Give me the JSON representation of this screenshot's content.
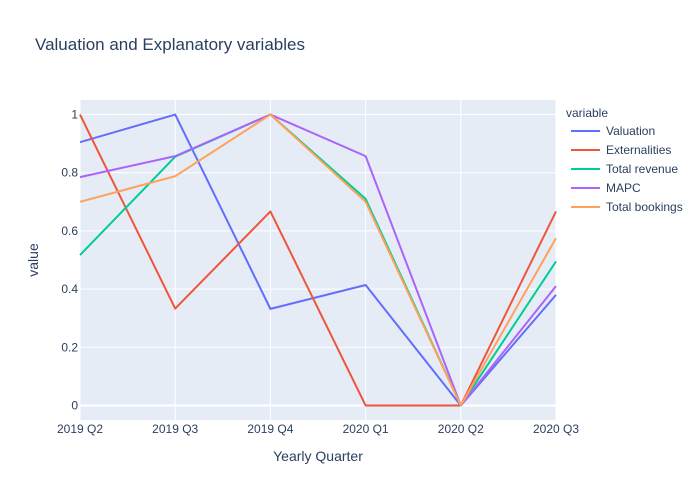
{
  "chart_data": {
    "type": "line",
    "title": "Valuation and Explanatory variables",
    "xlabel": "Yearly Quarter",
    "ylabel": "value",
    "categories": [
      "2019 Q2",
      "2019 Q3",
      "2019 Q4",
      "2020 Q1",
      "2020 Q2",
      "2020 Q3"
    ],
    "ylim": [
      -0.05,
      1.05
    ],
    "yticks": [
      0,
      0.2,
      0.4,
      0.6,
      0.8,
      1
    ],
    "ytick_labels": [
      "0",
      "0.2",
      "0.4",
      "0.6",
      "0.8",
      "1"
    ],
    "grid": true,
    "legend_title": "variable",
    "legend_position": "right",
    "plot_background": "#E5ECF6",
    "series": [
      {
        "name": "Valuation",
        "color": "#636efa",
        "values": [
          0.905,
          1.0,
          0.332,
          0.414,
          0.0,
          0.38
        ]
      },
      {
        "name": "Externalities",
        "color": "#EF553B",
        "values": [
          1.0,
          0.333,
          0.667,
          0.0,
          0.0,
          0.667
        ]
      },
      {
        "name": "Total revenue",
        "color": "#00cc96",
        "values": [
          0.517,
          0.855,
          1.0,
          0.71,
          0.0,
          0.495
        ]
      },
      {
        "name": "MAPC",
        "color": "#ab63fa",
        "values": [
          0.785,
          0.857,
          1.0,
          0.857,
          0.0,
          0.41
        ]
      },
      {
        "name": "Total bookings",
        "color": "#FFA15A",
        "values": [
          0.7,
          0.788,
          1.0,
          0.7,
          0.0,
          0.575
        ]
      }
    ]
  }
}
